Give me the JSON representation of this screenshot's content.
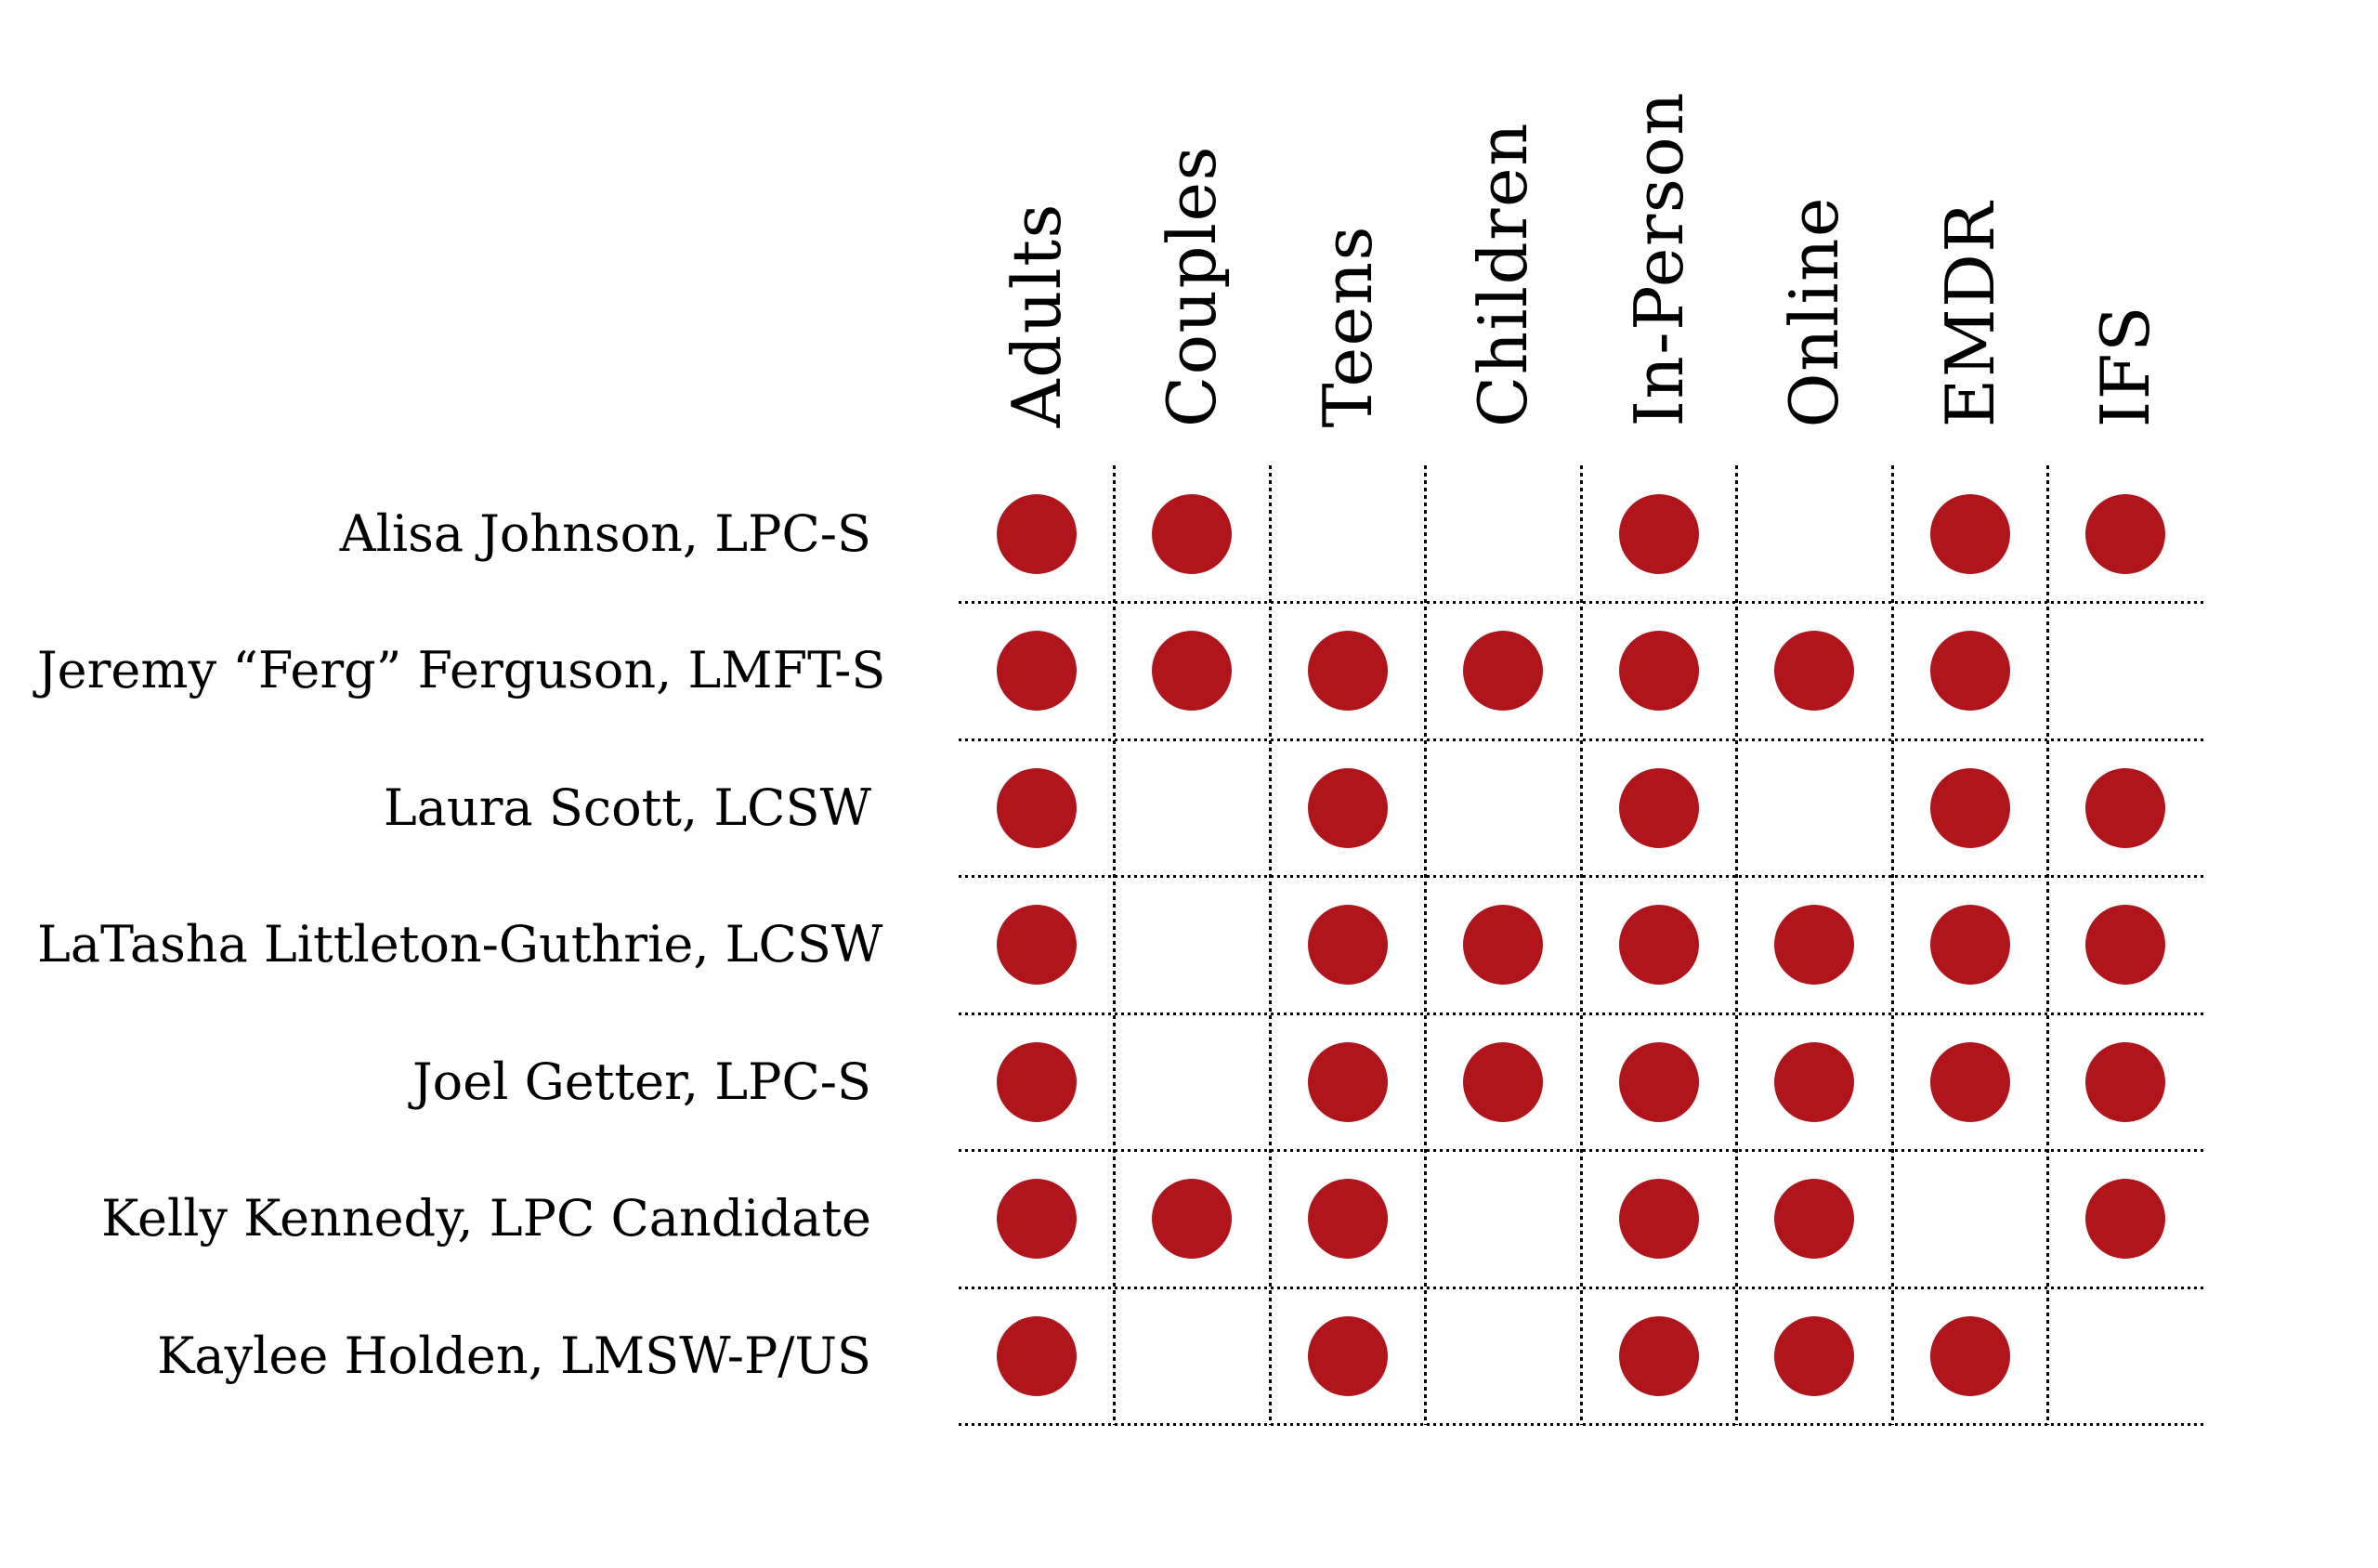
{
  "chart_data": {
    "type": "table",
    "columns": [
      "Adults",
      "Couples",
      "Teens",
      "Children",
      "In-Person",
      "Online",
      "EMDR",
      "IFS"
    ],
    "rows": [
      {
        "label": "Alisa Johnson, LPC-S",
        "values": [
          1,
          1,
          0,
          0,
          1,
          0,
          1,
          1
        ]
      },
      {
        "label": "Jeremy “Ferg” Ferguson, LMFT-S",
        "values": [
          1,
          1,
          1,
          1,
          1,
          1,
          1,
          0
        ]
      },
      {
        "label": "Laura Scott, LCSW",
        "values": [
          1,
          0,
          1,
          0,
          1,
          0,
          1,
          1
        ]
      },
      {
        "label": "LaTasha Littleton-Guthrie, LCSW",
        "values": [
          1,
          0,
          1,
          1,
          1,
          1,
          1,
          1
        ]
      },
      {
        "label": "Joel Getter, LPC-S",
        "values": [
          1,
          0,
          1,
          1,
          1,
          1,
          1,
          1
        ]
      },
      {
        "label": "Kelly Kennedy, LPC Candidate",
        "values": [
          1,
          1,
          1,
          0,
          1,
          1,
          0,
          1
        ]
      },
      {
        "label": "Kaylee Holden, LMSW-P/US",
        "values": [
          1,
          0,
          1,
          0,
          1,
          1,
          1,
          0
        ]
      }
    ],
    "legend": "filled dot = offered",
    "grid": "dotted"
  },
  "colors": {
    "dot": "#b0151c",
    "line": "#000000",
    "text": "#000000",
    "background": "#ffffff"
  }
}
